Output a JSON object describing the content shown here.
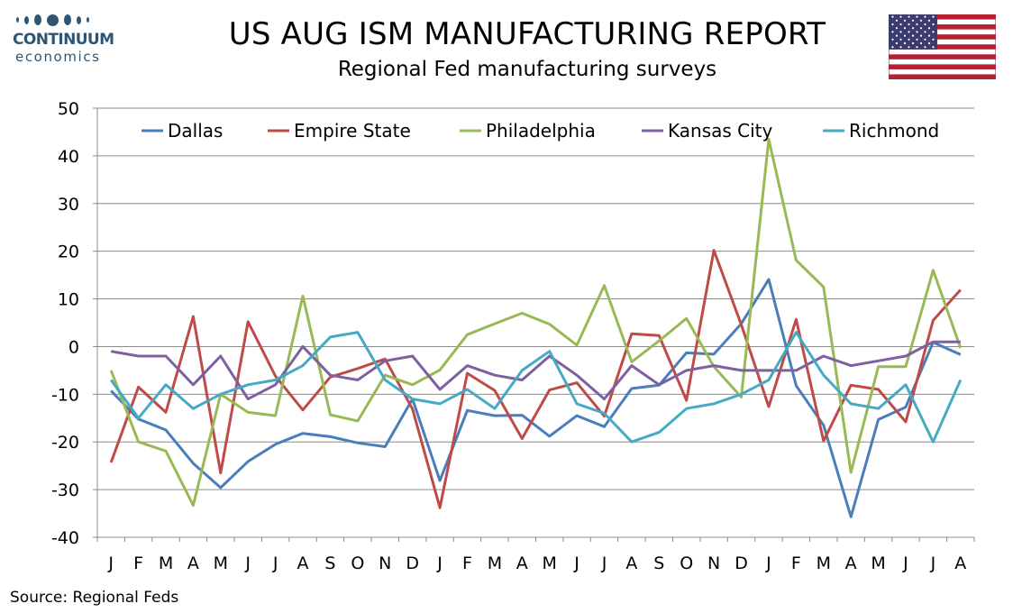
{
  "header": {
    "title": "US AUG ISM MANUFACTURING REPORT",
    "subtitle": "Regional Fed manufacturing surveys"
  },
  "logo": {
    "brand": "CONTINUUM",
    "sub": "economics",
    "color": "#2e5673"
  },
  "flag": {
    "icon": "us-flag-icon"
  },
  "source": "Source: Regional Feds",
  "chart_data": {
    "type": "line",
    "title": "Regional Fed manufacturing surveys",
    "xlabel": "",
    "ylabel": "",
    "ylim": [
      -40,
      50
    ],
    "yticks": [
      -40,
      -30,
      -20,
      -10,
      0,
      10,
      20,
      30,
      40,
      50
    ],
    "grid": true,
    "legend_position": "top",
    "categories": [
      "J",
      "F",
      "M",
      "A",
      "M",
      "J",
      "J",
      "A",
      "S",
      "O",
      "N",
      "D",
      "J",
      "F",
      "M",
      "A",
      "M",
      "J",
      "J",
      "A",
      "S",
      "O",
      "N",
      "D",
      "J",
      "F",
      "M",
      "A",
      "M",
      "J",
      "J",
      "A"
    ],
    "series": [
      {
        "name": "Dallas",
        "color": "#4a7ebb",
        "values": [
          -9.3,
          -15.2,
          -17.5,
          -24.5,
          -29.6,
          -24.1,
          -20.5,
          -18.2,
          -18.9,
          -20.2,
          -21.0,
          -11.0,
          -28.1,
          -13.4,
          -14.5,
          -14.4,
          -18.8,
          -14.5,
          -16.8,
          -8.8,
          -8.1,
          -1.3,
          -1.6,
          4.8,
          14.1,
          -8.2,
          -16.5,
          -35.7,
          -15.3,
          -12.7,
          0.9,
          -1.7
        ]
      },
      {
        "name": "Empire State",
        "color": "#be4b48",
        "values": [
          -24.3,
          -8.5,
          -13.8,
          6.3,
          -26.5,
          5.2,
          -6.2,
          -13.3,
          -6.4,
          -4.6,
          -2.6,
          -13.1,
          -33.8,
          -5.6,
          -9.2,
          -19.3,
          -9.1,
          -7.6,
          -14.6,
          2.7,
          2.3,
          -11.3,
          20.2,
          4.6,
          -12.6,
          5.7,
          -19.8,
          -8.1,
          -9.0,
          -15.8,
          5.5,
          11.9
        ]
      },
      {
        "name": "Philadelphia",
        "color": "#98b954",
        "values": [
          -5.0,
          -20.0,
          -21.9,
          -33.3,
          -10.0,
          -13.8,
          -14.5,
          10.6,
          -14.3,
          -15.6,
          -6.0,
          -8.0,
          -4.9,
          2.5,
          4.8,
          7.0,
          4.7,
          0.3,
          12.8,
          -3.2,
          1.2,
          5.9,
          -4.2,
          -10.6,
          43.5,
          18.1,
          12.5,
          -26.4,
          -4.2,
          -4.2,
          16.0,
          -0.3
        ]
      },
      {
        "name": "Kansas City",
        "color": "#7d60a0",
        "values": [
          -1.0,
          -2.0,
          -2.0,
          -8.0,
          -2.0,
          -11.0,
          -8.0,
          0.0,
          -6.0,
          -7.0,
          -3.0,
          -2.0,
          -9.0,
          -4.0,
          -6.0,
          -7.0,
          -2.0,
          -6.0,
          -11.0,
          -4.0,
          -8.0,
          -5.0,
          -4.0,
          -5.0,
          -5.0,
          -5.0,
          -2.0,
          -4.0,
          -3.0,
          -2.0,
          1.0,
          1.0
        ]
      },
      {
        "name": "Richmond",
        "color": "#46aac5",
        "values": [
          -7.0,
          -15.0,
          -8.0,
          -13.0,
          -10.0,
          -8.0,
          -7.0,
          -4.0,
          2.0,
          3.0,
          -7.0,
          -11.0,
          -12.0,
          -9.0,
          -13.0,
          -5.0,
          -1.0,
          -12.0,
          -14.0,
          -20.0,
          -18.0,
          -13.0,
          -12.0,
          -10.0,
          -7.0,
          3.0,
          -6.0,
          -12.0,
          -13.0,
          -8.0,
          -20.0,
          -7.0
        ]
      }
    ]
  }
}
